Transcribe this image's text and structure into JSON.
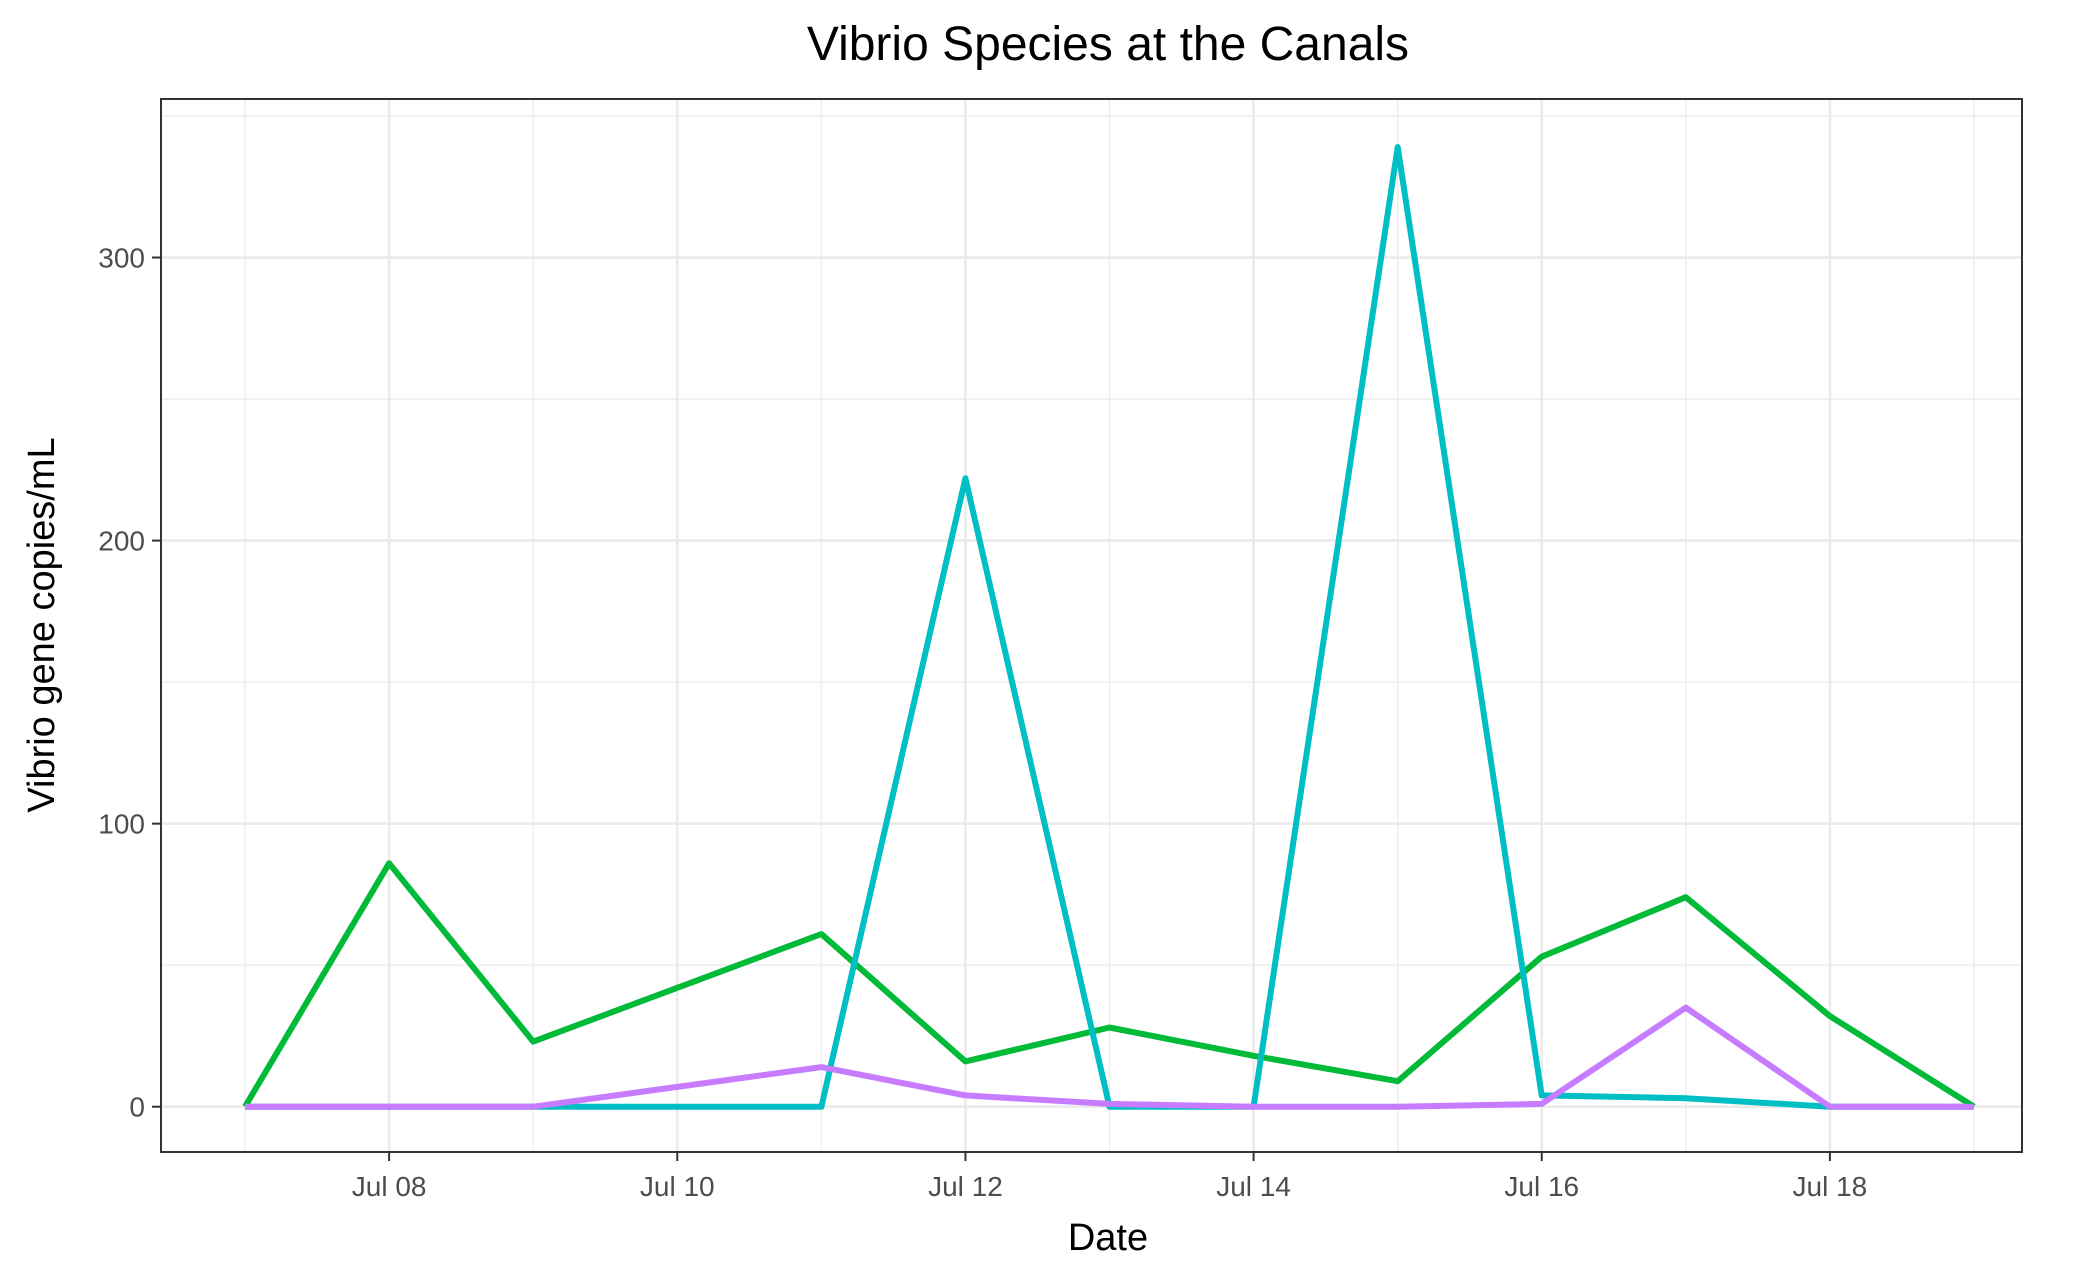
{
  "chart_data": {
    "type": "line",
    "title": "Vibrio Species at the Canals",
    "xlabel": "Date",
    "ylabel": "Vibrio gene copies/mL",
    "x": [
      "2020-07-07",
      "2020-07-08",
      "2020-07-09",
      "2020-07-10",
      "2020-07-11",
      "2020-07-12",
      "2020-07-13",
      "2020-07-14",
      "2020-07-15",
      "2020-07-16",
      "2020-07-17",
      "2020-07-18",
      "2020-07-19"
    ],
    "x_ticks": [
      "2020-07-08",
      "2020-07-10",
      "2020-07-12",
      "2020-07-14",
      "2020-07-16",
      "2020-07-18"
    ],
    "x_tick_labels": [
      "Jul 08",
      "Jul 10",
      "Jul 12",
      "Jul 14",
      "Jul 16",
      "Jul 18"
    ],
    "xlim": [
      "2020-07-06T10:00",
      "2020-07-19T08:00"
    ],
    "y_ticks": [
      0,
      100,
      200,
      300
    ],
    "ylim": [
      -16,
      356
    ],
    "grid": true,
    "series": [
      {
        "color": "#00ba38",
        "values": [
          0,
          86,
          23,
          42,
          61,
          16,
          28,
          18,
          9,
          53,
          74,
          32,
          0
        ]
      },
      {
        "color": "#00bfc4",
        "values": [
          0,
          0,
          0,
          0,
          0,
          222,
          0,
          0,
          339,
          4,
          3,
          0,
          0
        ]
      },
      {
        "color": "#c77cff",
        "values": [
          0,
          0,
          0,
          7,
          14,
          4,
          1,
          0,
          0,
          1,
          35,
          0,
          0
        ]
      }
    ]
  }
}
